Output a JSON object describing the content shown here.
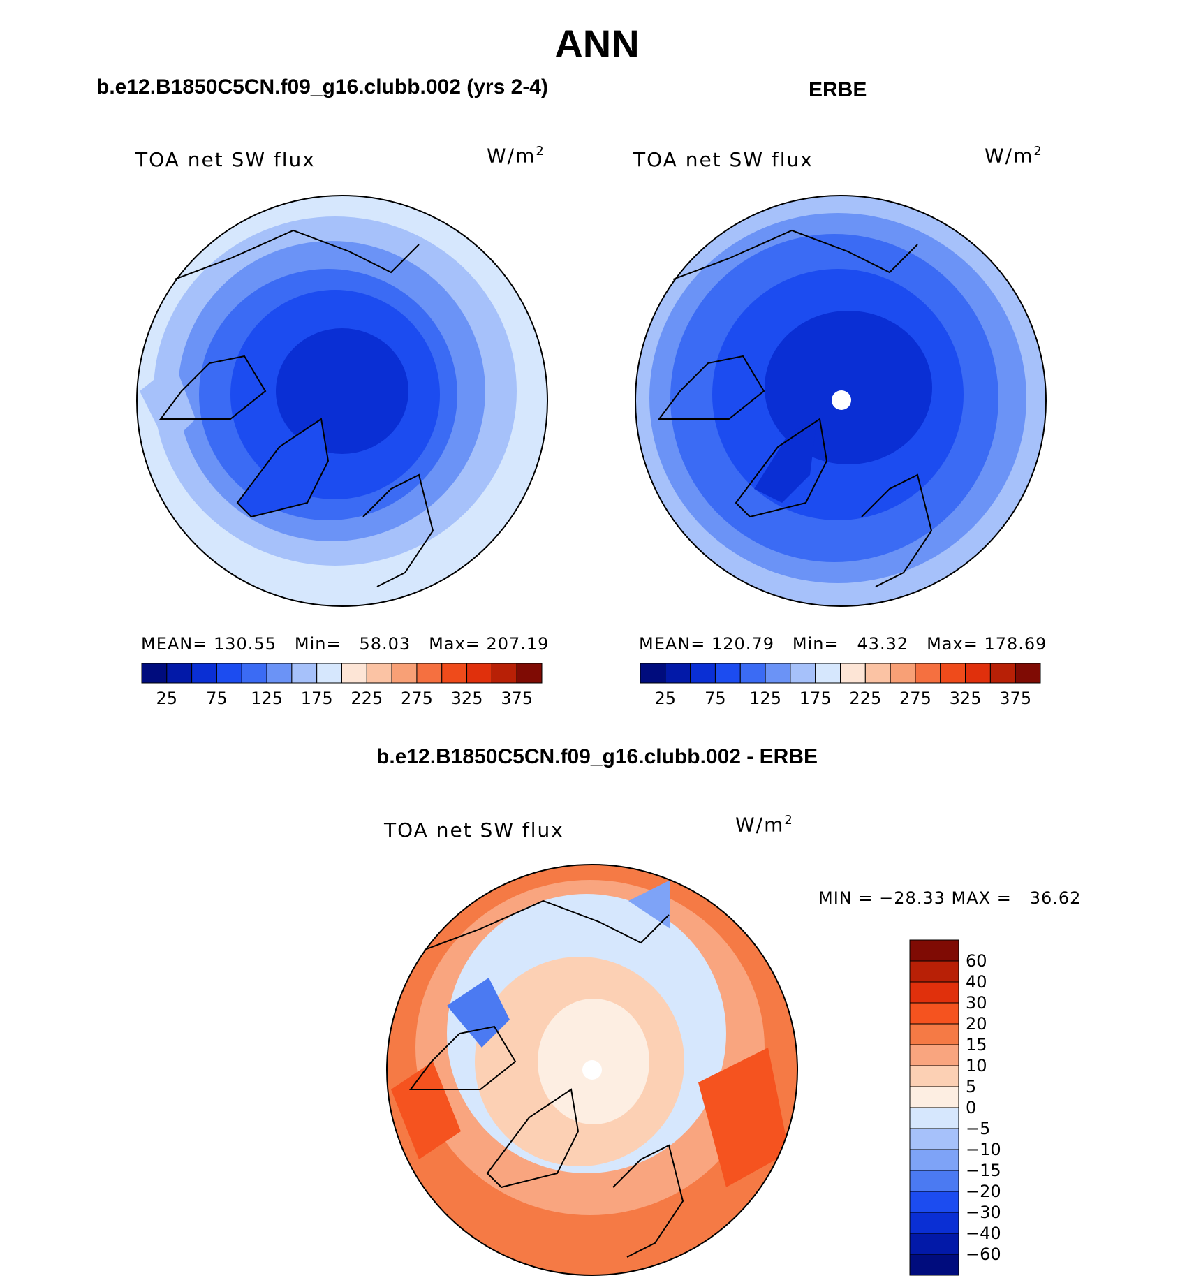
{
  "title": "ANN",
  "panel_left": {
    "header": "b.e12.B1850C5CN.f09_g16.clubb.002 (yrs 2-4)",
    "variable": "TOA net SW flux",
    "units_base": "W/m",
    "units_exp": "2",
    "stats": {
      "mean_label": "MEAN=",
      "mean": "130.55",
      "min_label": "Min=",
      "min": "58.03",
      "max_label": "Max=",
      "max": "207.19"
    }
  },
  "panel_right": {
    "header": "ERBE",
    "variable": "TOA net SW flux",
    "units_base": "W/m",
    "units_exp": "2",
    "stats": {
      "mean_label": "MEAN=",
      "mean": "120.79",
      "min_label": "Min=",
      "min": "43.32",
      "max_label": "Max=",
      "max": "178.69"
    }
  },
  "panel_diff": {
    "header": "b.e12.B1850C5CN.f09_g16.clubb.002 - ERBE",
    "variable": "TOA net SW flux",
    "units_base": "W/m",
    "units_exp": "2",
    "stats_text": "MIN = −28.33 MAX =   36.62"
  },
  "chart_data": [
    {
      "type": "heatmap",
      "title": "b.e12.B1850C5CN.f09_g16.clubb.002 (yrs 2-4)",
      "projection": "north-polar-stereographic",
      "variable": "TOA net SW flux",
      "units": "W/m2",
      "mean": 130.55,
      "min": 58.03,
      "max": 207.19,
      "colorbar_ticks": [
        "25",
        "75",
        "125",
        "175",
        "225",
        "275",
        "325",
        "375"
      ],
      "levels": [
        25,
        50,
        75,
        100,
        125,
        150,
        175,
        200,
        225,
        250,
        275,
        300,
        325,
        350,
        375
      ],
      "colors": [
        "#000c7d",
        "#0219a8",
        "#0a2fd4",
        "#1c4cf0",
        "#3b6bf4",
        "#6b93f6",
        "#a6c1fa",
        "#d6e7fd",
        "#fde5d6",
        "#fbc3a4",
        "#f8a076",
        "#f57040",
        "#ef4b1b",
        "#e0300c",
        "#b82006",
        "#7f0b04"
      ]
    },
    {
      "type": "heatmap",
      "title": "ERBE",
      "projection": "north-polar-stereographic",
      "variable": "TOA net SW flux",
      "units": "W/m2",
      "mean": 120.79,
      "min": 43.32,
      "max": 178.69,
      "colorbar_ticks": [
        "25",
        "75",
        "125",
        "175",
        "225",
        "275",
        "325",
        "375"
      ],
      "levels": [
        25,
        50,
        75,
        100,
        125,
        150,
        175,
        200,
        225,
        250,
        275,
        300,
        325,
        350,
        375
      ],
      "colors": [
        "#000c7d",
        "#0219a8",
        "#0a2fd4",
        "#1c4cf0",
        "#3b6bf4",
        "#6b93f6",
        "#a6c1fa",
        "#d6e7fd",
        "#fde5d6",
        "#fbc3a4",
        "#f8a076",
        "#f57040",
        "#ef4b1b",
        "#e0300c",
        "#b82006",
        "#7f0b04"
      ]
    },
    {
      "type": "heatmap",
      "title": "b.e12.B1850C5CN.f09_g16.clubb.002 - ERBE",
      "projection": "north-polar-stereographic",
      "variable": "TOA net SW flux",
      "units": "W/m2",
      "min": -28.33,
      "max": 36.62,
      "colorbar_ticks": [
        "60",
        "40",
        "30",
        "20",
        "15",
        "10",
        "5",
        "0",
        "−5",
        "−10",
        "−15",
        "−20",
        "−30",
        "−40",
        "−60"
      ],
      "colors_top_to_bottom": [
        "#7f0b04",
        "#b82006",
        "#e0300c",
        "#f5531f",
        "#f57a45",
        "#f9a57f",
        "#fcd0b4",
        "#fdeee2",
        "#d6e7fd",
        "#a6c1fa",
        "#7ea3f7",
        "#4b7af2",
        "#1c4cf0",
        "#0a2fd4",
        "#0219a8",
        "#000c7d"
      ]
    }
  ]
}
